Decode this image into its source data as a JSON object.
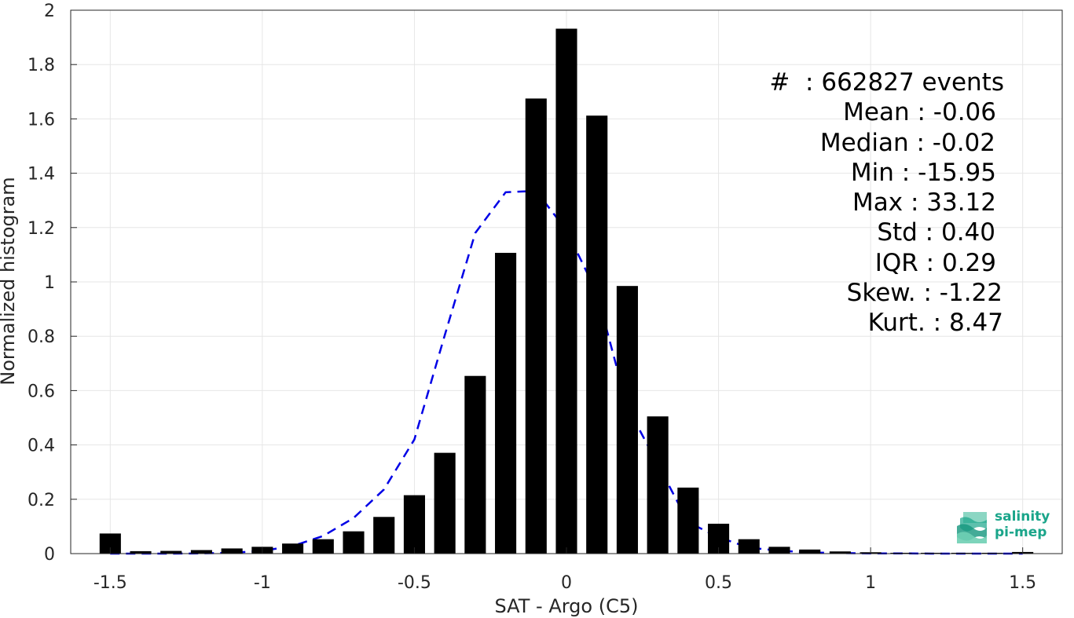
{
  "chart_data": {
    "type": "bar",
    "xlabel": "SAT - Argo (C5)",
    "ylabel": "Normalized histogram",
    "xlim": [
      -1.63,
      1.63
    ],
    "ylim": [
      0,
      2
    ],
    "x_ticks": [
      "-1.5",
      "-1",
      "-0.5",
      "0",
      "0.5",
      "1",
      "1.5"
    ],
    "y_ticks": [
      "0",
      "0.2",
      "0.4",
      "0.6",
      "0.8",
      "1",
      "1.2",
      "1.4",
      "1.6",
      "1.8",
      "2"
    ],
    "grid": true,
    "bin_width": 0.1,
    "x": [
      -1.5,
      -1.4,
      -1.3,
      -1.2,
      -1.1,
      -1.0,
      -0.9,
      -0.8,
      -0.7,
      -0.6,
      -0.5,
      -0.4,
      -0.3,
      -0.2,
      -0.1,
      0.0,
      0.1,
      0.2,
      0.3,
      0.4,
      0.5,
      0.6,
      0.7,
      0.8,
      0.9,
      1.0,
      1.1,
      1.2,
      1.3,
      1.4,
      1.5
    ],
    "values": [
      0.074,
      0.009,
      0.01,
      0.013,
      0.019,
      0.025,
      0.037,
      0.053,
      0.082,
      0.135,
      0.215,
      0.371,
      0.654,
      1.107,
      1.675,
      1.932,
      1.612,
      0.985,
      0.505,
      0.243,
      0.11,
      0.053,
      0.025,
      0.015,
      0.008,
      0.005,
      0.003,
      0.003,
      0.003,
      0.003,
      0.006
    ],
    "bar_color": "#000000",
    "fit_curve": {
      "style": "dashed",
      "color": "#0000e6",
      "x": [
        -1.5,
        -1.4,
        -1.3,
        -1.2,
        -1.1,
        -1.0,
        -0.9,
        -0.8,
        -0.7,
        -0.6,
        -0.5,
        -0.4,
        -0.3,
        -0.2,
        -0.1,
        0.0,
        0.1,
        0.2,
        0.3,
        0.4,
        0.5,
        0.6,
        0.7,
        0.8,
        0.9,
        1.0,
        1.1,
        1.2,
        1.3,
        1.4,
        1.5
      ],
      "values": [
        0.0,
        0.0,
        0.0,
        0.001,
        0.003,
        0.01,
        0.028,
        0.065,
        0.131,
        0.236,
        0.42,
        0.805,
        1.18,
        1.33,
        1.335,
        1.19,
        0.96,
        0.54,
        0.33,
        0.116,
        0.06,
        0.022,
        0.011,
        0.004,
        0.002,
        0.001,
        0.001,
        0.0,
        0.0,
        0.0,
        0.0
      ],
      "x_start_offset": -0.05
    },
    "annotations": [
      "#  : 662827 events",
      "Mean : -0.06",
      "Median : -0.02",
      "Min : -15.95",
      "Max : 33.12",
      "Std : 0.40",
      "IQR : 0.29",
      "Skew. : -1.22",
      "Kurt. : 8.47"
    ]
  },
  "logo": {
    "line1": "salinity",
    "line2": "pi-mep",
    "color": "#1aa58a"
  }
}
